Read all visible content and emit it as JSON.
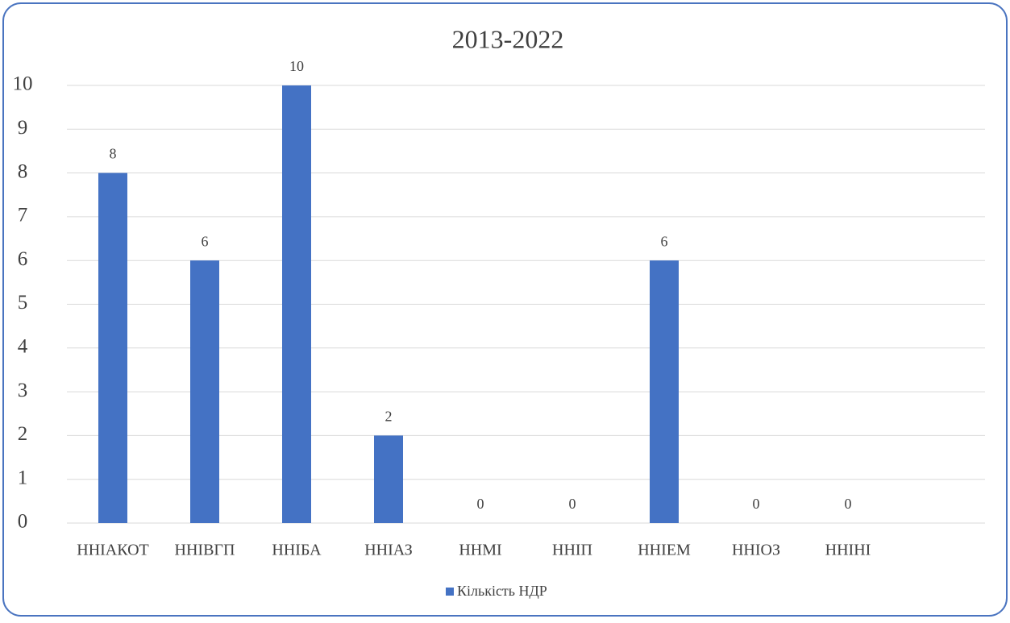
{
  "chart_data": {
    "type": "bar",
    "title": "2013-2022",
    "categories": [
      "ННІАКОТ",
      "ННІВГП",
      "ННІБА",
      "ННІАЗ",
      "ННМІ",
      "ННІП",
      "ННІЕМ",
      "ННІОЗ",
      "ННІНІ"
    ],
    "series": [
      {
        "name": "Кількість НДР",
        "color": "#4472c4",
        "values": [
          8,
          6,
          10,
          2,
          0,
          0,
          6,
          0,
          0
        ]
      }
    ],
    "ylim": [
      0,
      10
    ],
    "yticks": [
      0,
      1,
      2,
      3,
      4,
      5,
      6,
      7,
      8,
      9,
      10
    ],
    "grid": true,
    "legend": "bottom"
  }
}
